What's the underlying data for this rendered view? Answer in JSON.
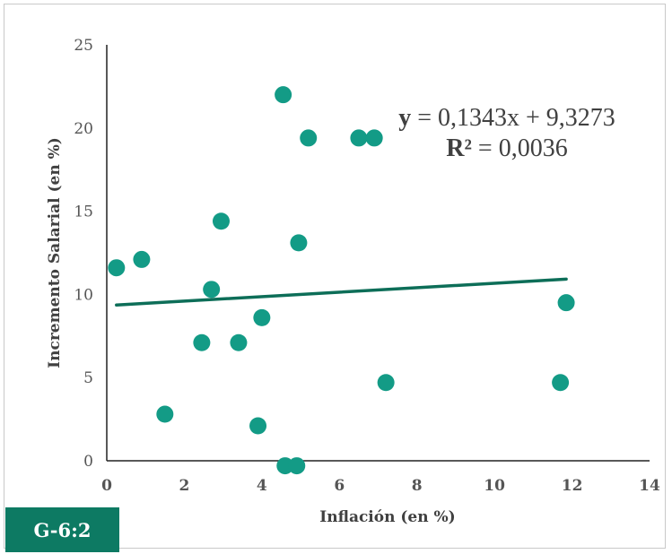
{
  "badge": "G-6:2",
  "chart_data": {
    "type": "scatter",
    "title": "",
    "xlabel": "Inflación (en %)",
    "ylabel": "Incremento Salarial (en %)",
    "xlim": [
      0,
      14
    ],
    "ylim": [
      0,
      25
    ],
    "xticks": [
      "0",
      "2",
      "4",
      "6",
      "8",
      "10",
      "12",
      "14"
    ],
    "yticks": [
      "0",
      "5",
      "10",
      "15",
      "20",
      "25"
    ],
    "grid": false,
    "legend": "none",
    "colors": {
      "points": "#139b86",
      "trendline": "#0d6e58",
      "axis": "#222222"
    },
    "points": [
      {
        "x": 0.25,
        "y": 11.6
      },
      {
        "x": 0.9,
        "y": 12.1
      },
      {
        "x": 1.5,
        "y": 2.8
      },
      {
        "x": 2.45,
        "y": 7.1
      },
      {
        "x": 2.7,
        "y": 10.3
      },
      {
        "x": 2.95,
        "y": 14.4
      },
      {
        "x": 3.4,
        "y": 7.1
      },
      {
        "x": 3.9,
        "y": 2.1
      },
      {
        "x": 4.0,
        "y": 8.6
      },
      {
        "x": 4.55,
        "y": 22.0
      },
      {
        "x": 4.6,
        "y": -0.3
      },
      {
        "x": 4.9,
        "y": -0.3
      },
      {
        "x": 4.95,
        "y": 13.1
      },
      {
        "x": 5.2,
        "y": 19.4
      },
      {
        "x": 6.5,
        "y": 19.4
      },
      {
        "x": 6.9,
        "y": 19.4
      },
      {
        "x": 7.2,
        "y": 4.7
      },
      {
        "x": 11.7,
        "y": 4.7
      },
      {
        "x": 11.85,
        "y": 9.5
      }
    ],
    "trendline": {
      "x_start": 0.25,
      "x_end": 11.85,
      "slope": 0.1343,
      "intercept": 9.3273,
      "equation_prefix": "y",
      "equation_rest": " = 0,1343x + 9,3273",
      "r2_prefix": "R²",
      "r2_rest": " = 0,0036"
    }
  }
}
